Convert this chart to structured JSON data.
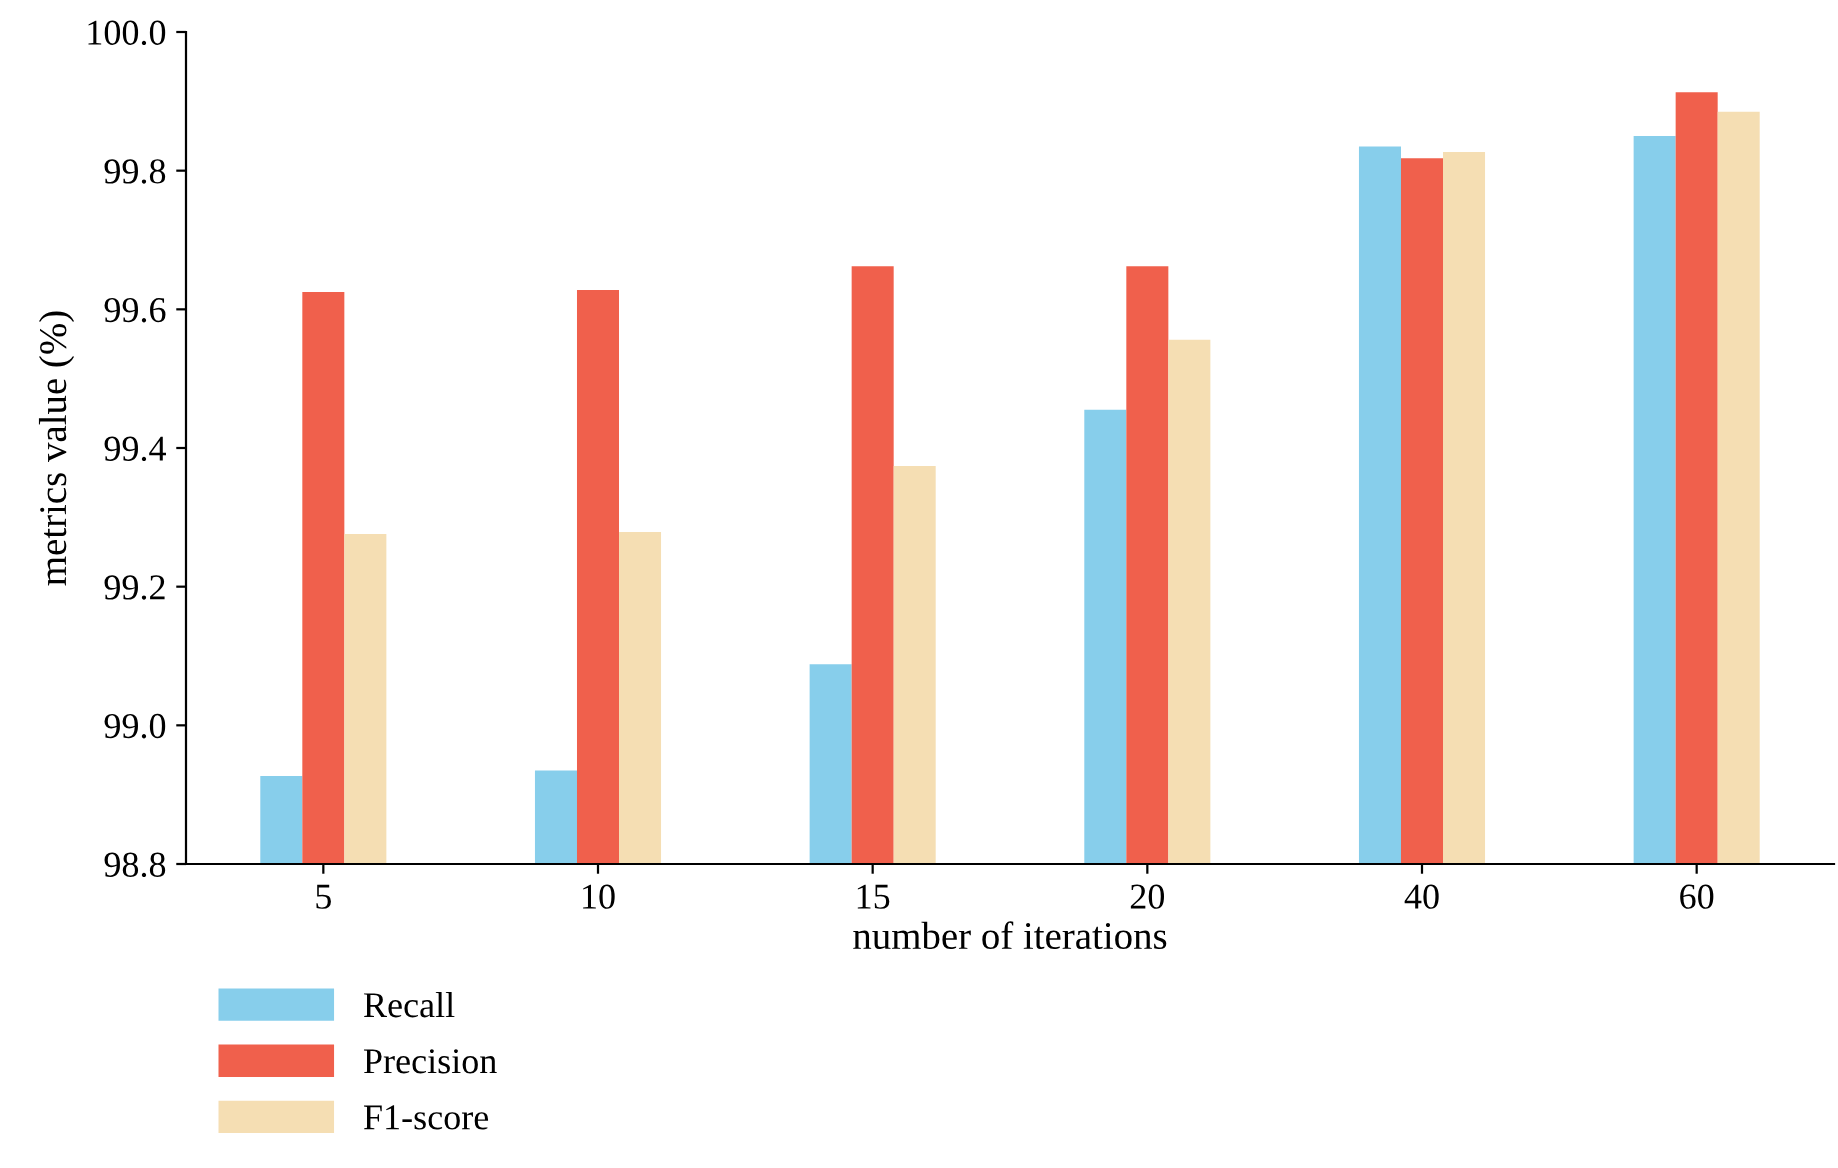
{
  "chart_data": {
    "type": "bar",
    "xlabel": "number of iterations",
    "ylabel": "metrics value (%)",
    "categories": [
      "5",
      "10",
      "15",
      "20",
      "40",
      "60"
    ],
    "series": [
      {
        "name": "Recall",
        "color": "#87ceeb",
        "values": [
          98.927,
          98.935,
          99.088,
          99.455,
          99.835,
          99.85
        ]
      },
      {
        "name": "Precision",
        "color": "#f0604c",
        "values": [
          99.625,
          99.628,
          99.662,
          99.662,
          99.818,
          99.913
        ]
      },
      {
        "name": "F1-score",
        "color": "#f5deb3",
        "values": [
          99.276,
          99.279,
          99.374,
          99.556,
          99.827,
          99.885
        ]
      }
    ],
    "ylim": [
      98.8,
      100.0
    ],
    "yticks": [
      {
        "value": 98.8,
        "label": "98.8"
      },
      {
        "value": 99.0,
        "label": "99.0"
      },
      {
        "value": 99.2,
        "label": "99.2"
      },
      {
        "value": 99.4,
        "label": "99.4"
      },
      {
        "value": 99.6,
        "label": "99.6"
      },
      {
        "value": 99.8,
        "label": "99.8"
      },
      {
        "value": 100.0,
        "label": "100.0"
      }
    ],
    "grid": false,
    "legend": "bottom left"
  }
}
